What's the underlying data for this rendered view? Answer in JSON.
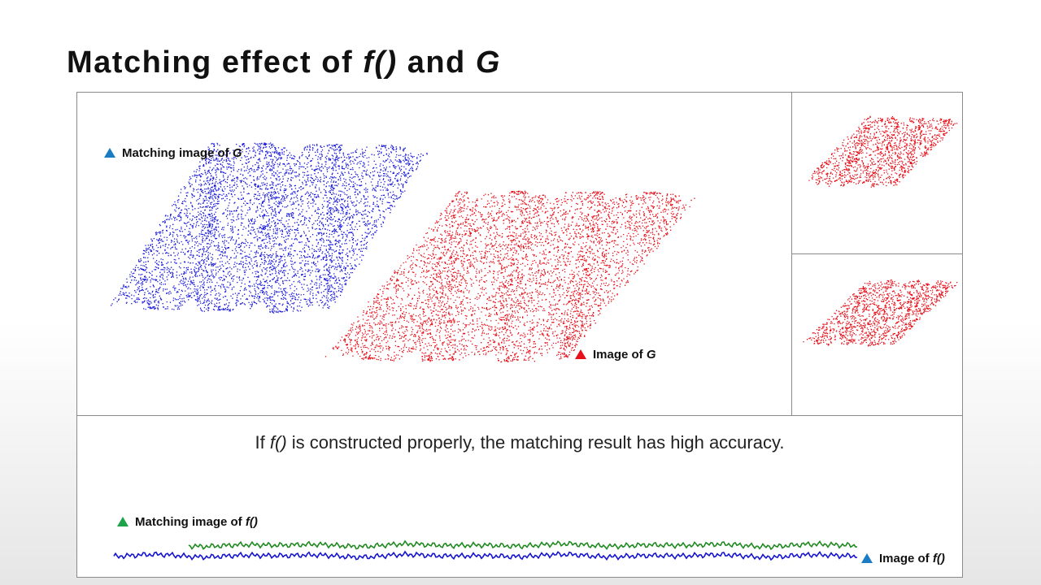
{
  "slide": {
    "title_prefix": "Matching effect of ",
    "title_f": "f()",
    "title_and": " and ",
    "title_G": "G"
  },
  "main_panel": {
    "matching_label_prefix": "Matching image of ",
    "matching_label_G": "G",
    "image_label_prefix": "Image of ",
    "image_label_G": "G"
  },
  "bottom_panel": {
    "caption_prefix": "If ",
    "caption_f": "f()",
    "caption_suffix": " is constructed properly, the matching result has high accuracy.",
    "matching_label_prefix": "Matching image of ",
    "matching_label_f": "f()",
    "image_label_prefix": "Image of ",
    "image_label_f": "f()"
  },
  "colors": {
    "blue_points": "#1a1adc",
    "red_points": "#e8101a",
    "green_curve": "#1e8a1e",
    "blue_curve": "#1414d2",
    "marker_blue": "#1a7cc2",
    "marker_red": "#e8101a",
    "marker_green": "#1ea24a"
  },
  "icons": [
    "triangle-marker-icon"
  ]
}
